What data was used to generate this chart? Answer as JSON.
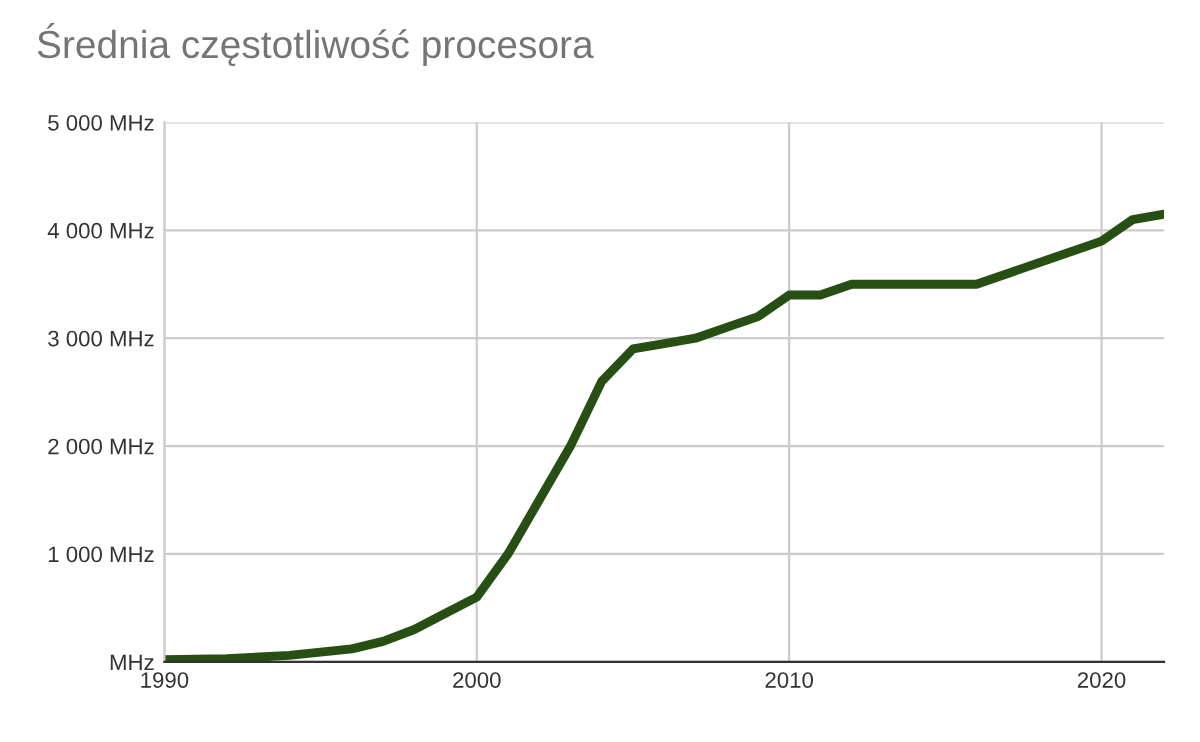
{
  "chart_data": {
    "type": "line",
    "title": "Średnia częstotliwość procesora",
    "x": [
      1990,
      1992,
      1994,
      1996,
      1997,
      1998,
      1999,
      2000,
      2001,
      2002,
      2003,
      2004,
      2005,
      2006,
      2007,
      2008,
      2009,
      2010,
      2011,
      2012,
      2016,
      2020,
      2021,
      2022
    ],
    "series": [
      {
        "color": "#274e13",
        "values": [
          20,
          30,
          60,
          120,
          190,
          300,
          450,
          600,
          1000,
          1500,
          2000,
          2600,
          2900,
          2950,
          3000,
          3100,
          3200,
          3400,
          3400,
          3500,
          3500,
          3900,
          4100,
          4150
        ]
      }
    ],
    "xlim": [
      1990,
      2022
    ],
    "xticks": [
      1990,
      2000,
      2010,
      2020
    ],
    "ylim": [
      0,
      5000
    ],
    "yticks": [
      {
        "value": 0,
        "label": "MHz"
      },
      {
        "value": 1000,
        "label": "1 000 MHz"
      },
      {
        "value": 2000,
        "label": "2 000 MHz"
      },
      {
        "value": 3000,
        "label": "3 000 MHz"
      },
      {
        "value": 4000,
        "label": "4 000 MHz"
      },
      {
        "value": 5000,
        "label": "5 000 MHz"
      }
    ],
    "grid": true,
    "marker": "none",
    "line_style": "solid"
  }
}
